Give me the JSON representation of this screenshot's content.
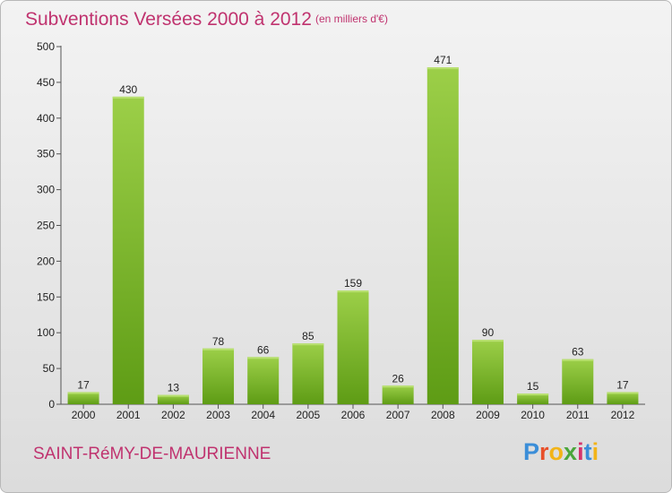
{
  "header": {
    "title": "Subventions Versées 2000 à 2012",
    "unit": "(en milliers d'€)"
  },
  "footer": {
    "commune": "SAINT-RéMY-DE-MAURIENNE",
    "logo": "Proxiti"
  },
  "colors": {
    "accent": "#c0336f",
    "bar_light": "#9ccf48",
    "bar_dark": "#5e9c15",
    "logo_letters": [
      "#3b8ed8",
      "#e8502a",
      "#f2b418",
      "#4aa63a",
      "#d6336c",
      "#3b8ed8",
      "#f2b418"
    ]
  },
  "chart_data": {
    "type": "bar",
    "title": "Subventions Versées 2000 à 2012",
    "subtitle": "(en milliers d'€)",
    "xlabel": "",
    "ylabel": "",
    "categories": [
      "2000",
      "2001",
      "2002",
      "2003",
      "2004",
      "2005",
      "2006",
      "2007",
      "2008",
      "2009",
      "2010",
      "2011",
      "2012"
    ],
    "values": [
      17,
      430,
      13,
      78,
      66,
      85,
      159,
      26,
      471,
      90,
      15,
      63,
      17
    ],
    "ylim": [
      0,
      500
    ],
    "yticks": [
      "0",
      "50",
      "100",
      "150",
      "200",
      "250",
      "300",
      "350",
      "400",
      "450",
      "500"
    ],
    "grid": false,
    "legend": "none"
  }
}
